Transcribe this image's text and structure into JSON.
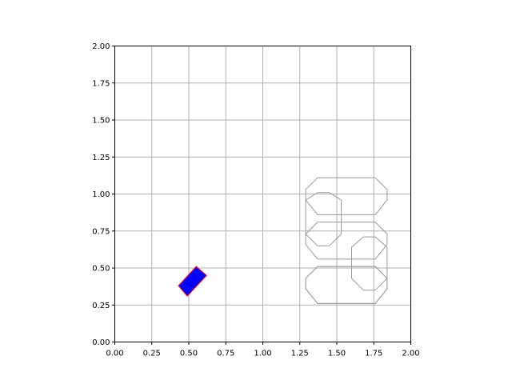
{
  "chart_data": {
    "type": "scatter",
    "title": "",
    "xlabel": "",
    "ylabel": "",
    "xlim": [
      0,
      2
    ],
    "ylim": [
      0,
      2
    ],
    "grid": true,
    "grid_color": "#b0b0b0",
    "x_ticks": [
      0,
      0.25,
      0.5,
      0.75,
      1.0,
      1.25,
      1.5,
      1.75,
      2.0
    ],
    "y_ticks": [
      0,
      0.25,
      0.5,
      0.75,
      1.0,
      1.25,
      1.5,
      1.75,
      2.0
    ],
    "x_tick_labels": [
      "0.00",
      "0.25",
      "0.50",
      "0.75",
      "1.00",
      "1.25",
      "1.50",
      "1.75",
      "2.00"
    ],
    "y_tick_labels": [
      "0.00",
      "0.25",
      "0.50",
      "0.75",
      "1.00",
      "1.25",
      "1.50",
      "1.75",
      "2.00"
    ],
    "shapes": [
      {
        "kind": "filled-polygon",
        "fill": "#0000ff",
        "stroke": "#ff0000",
        "points": [
          [
            0.55,
            0.51
          ],
          [
            0.62,
            0.45
          ],
          [
            0.49,
            0.31
          ],
          [
            0.43,
            0.38
          ]
        ]
      },
      {
        "kind": "outline",
        "stroke": "#999999",
        "points": [
          [
            1.37,
            1.11
          ],
          [
            1.76,
            1.11
          ],
          [
            1.84,
            1.03
          ],
          [
            1.84,
            0.96
          ],
          [
            1.76,
            0.86
          ],
          [
            1.37,
            0.86
          ],
          [
            1.29,
            0.96
          ],
          [
            1.29,
            1.03
          ]
        ]
      },
      {
        "kind": "outline",
        "stroke": "#999999",
        "points": [
          [
            1.37,
            1.01
          ],
          [
            1.45,
            1.01
          ],
          [
            1.53,
            0.96
          ],
          [
            1.53,
            0.73
          ],
          [
            1.45,
            0.65
          ],
          [
            1.37,
            0.65
          ],
          [
            1.29,
            0.73
          ],
          [
            1.29,
            0.96
          ]
        ]
      },
      {
        "kind": "outline",
        "stroke": "#999999",
        "points": [
          [
            1.37,
            0.81
          ],
          [
            1.76,
            0.81
          ],
          [
            1.84,
            0.73
          ],
          [
            1.84,
            0.66
          ],
          [
            1.76,
            0.56
          ],
          [
            1.37,
            0.56
          ],
          [
            1.29,
            0.66
          ],
          [
            1.29,
            0.73
          ]
        ]
      },
      {
        "kind": "outline",
        "stroke": "#999999",
        "points": [
          [
            1.68,
            0.71
          ],
          [
            1.76,
            0.71
          ],
          [
            1.84,
            0.64
          ],
          [
            1.84,
            0.43
          ],
          [
            1.76,
            0.35
          ],
          [
            1.68,
            0.35
          ],
          [
            1.6,
            0.43
          ],
          [
            1.6,
            0.64
          ]
        ]
      },
      {
        "kind": "outline",
        "stroke": "#999999",
        "points": [
          [
            1.37,
            0.51
          ],
          [
            1.76,
            0.51
          ],
          [
            1.84,
            0.43
          ],
          [
            1.84,
            0.36
          ],
          [
            1.76,
            0.26
          ],
          [
            1.37,
            0.26
          ],
          [
            1.29,
            0.36
          ],
          [
            1.29,
            0.43
          ]
        ]
      },
      {
        "kind": "outline",
        "stroke": "#999999",
        "points": [
          [
            1.37,
            0.51
          ],
          [
            1.76,
            0.51
          ],
          [
            1.84,
            0.43
          ],
          [
            1.84,
            0.36
          ],
          [
            1.76,
            0.26
          ],
          [
            1.37,
            0.26
          ],
          [
            1.29,
            0.36
          ],
          [
            1.29,
            0.43
          ]
        ]
      }
    ]
  }
}
